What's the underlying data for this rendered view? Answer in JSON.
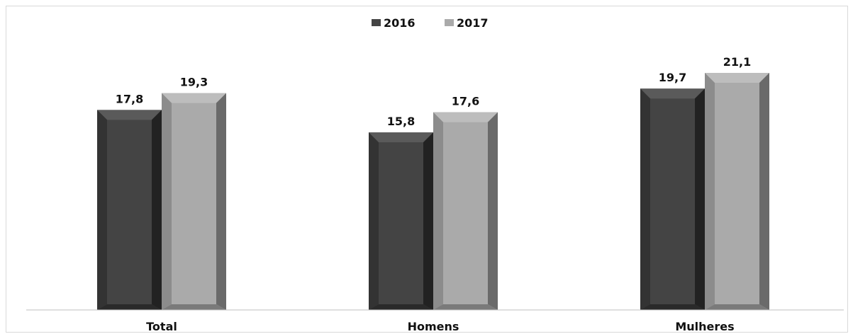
{
  "chart_data": {
    "type": "bar",
    "title": "",
    "xlabel": "",
    "ylabel": "",
    "categories": [
      "Total",
      "Homens",
      "Mulheres"
    ],
    "series": [
      {
        "name": "2016",
        "values": [
          17.8,
          15.8,
          19.7
        ],
        "value_labels": [
          "17,8",
          "15,8",
          "19,7"
        ],
        "color": "#444444"
      },
      {
        "name": "2017",
        "values": [
          19.3,
          17.6,
          21.1
        ],
        "value_labels": [
          "19,3",
          "17,6",
          "21,1"
        ],
        "color": "#aaaaaa"
      }
    ],
    "ylim": [
      0,
      21.1
    ],
    "grid": false,
    "legend_position": "top-center"
  }
}
